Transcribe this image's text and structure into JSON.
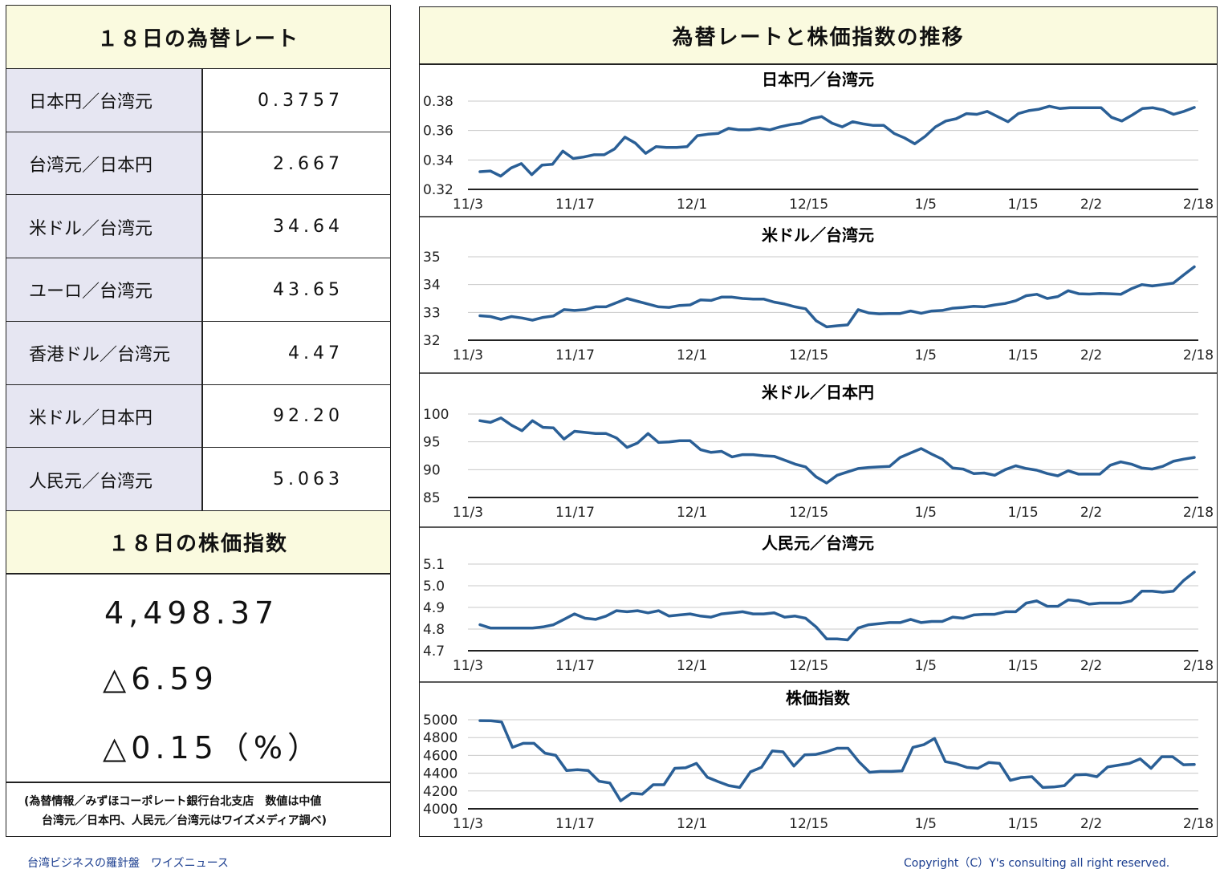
{
  "rates": {
    "title": "１８日の為替レート",
    "rows": [
      {
        "label": "日本円／台湾元",
        "value": "0.3757"
      },
      {
        "label": "台湾元／日本円",
        "value": "2.667"
      },
      {
        "label": "米ドル／台湾元",
        "value": "34.64"
      },
      {
        "label": "ユーロ／台湾元",
        "value": "43.65"
      },
      {
        "label": "香港ドル／台湾元",
        "value": "4.47"
      },
      {
        "label": "米ドル／日本円",
        "value": "92.20"
      },
      {
        "label": "人民元／台湾元",
        "value": "5.063"
      }
    ]
  },
  "stock": {
    "title": "１８日の株価指数",
    "value": "4,498.37",
    "change": "△6.59",
    "change_pct": "△0.15（%）"
  },
  "source_note": {
    "line1": "(為替情報／みずほコーポレート銀行台北支店　数値は中値",
    "line2": "台湾元／日本円、人民元／台湾元はワイズメディア調べ)"
  },
  "charts_header": "為替レートと株価指数の推移",
  "footer": {
    "left": "台湾ビジネスの羅針盤　ワイズニュース",
    "right": "Copyright（C）Y's consulting all right reserved."
  },
  "colors": {
    "line": "#2a5f96",
    "header_bg": "#fafadf",
    "label_bg": "#e6e6f2"
  },
  "chart_data": [
    {
      "type": "line",
      "title": "日本円／台湾元",
      "ylim": [
        0.32,
        0.38
      ],
      "yticks": [
        "0.38",
        "0.36",
        "0.34",
        "0.32"
      ],
      "ytick_values": [
        0.38,
        0.36,
        0.34,
        0.32
      ],
      "xtick_labels": [
        "11/3",
        "11/17",
        "12/1",
        "12/15",
        "1/5",
        "1/15",
        "2/2",
        "2/18"
      ],
      "xtick_index": [
        0,
        11,
        23,
        35,
        47,
        57,
        64,
        75
      ],
      "series": [
        {
          "values": [
            0.332,
            0.3325,
            0.329,
            0.3345,
            0.3375,
            0.33,
            0.3365,
            0.337,
            0.346,
            0.341,
            0.342,
            0.3435,
            0.3435,
            0.3475,
            0.3555,
            0.3515,
            0.3445,
            0.349,
            0.3485,
            0.3485,
            0.349,
            0.3565,
            0.3575,
            0.358,
            0.3615,
            0.3605,
            0.3605,
            0.3615,
            0.3605,
            0.3625,
            0.364,
            0.365,
            0.368,
            0.3695,
            0.365,
            0.3625,
            0.366,
            0.3645,
            0.3635,
            0.3635,
            0.358,
            0.355,
            0.351,
            0.356,
            0.3625,
            0.3665,
            0.368,
            0.3715,
            0.371,
            0.373,
            0.3695,
            0.366,
            0.3715,
            0.3735,
            0.3745,
            0.3765,
            0.375,
            0.3755,
            0.3755,
            0.3755,
            0.3755,
            0.369,
            0.3665,
            0.3705,
            0.375,
            0.3755,
            0.374,
            0.371,
            0.373,
            0.3757
          ]
        }
      ]
    },
    {
      "type": "line",
      "title": "米ドル／台湾元",
      "ylim": [
        32,
        35
      ],
      "yticks": [
        "35",
        "34",
        "33",
        "32"
      ],
      "ytick_values": [
        35,
        34,
        33,
        32
      ],
      "xtick_labels": [
        "11/3",
        "11/17",
        "12/1",
        "12/15",
        "1/5",
        "1/15",
        "2/2",
        "2/18"
      ],
      "xtick_index": [
        0,
        11,
        23,
        35,
        47,
        57,
        64,
        75
      ],
      "series": [
        {
          "values": [
            32.88,
            32.85,
            32.75,
            32.85,
            32.8,
            32.72,
            32.82,
            32.87,
            33.1,
            33.07,
            33.1,
            33.2,
            33.2,
            33.35,
            33.5,
            33.4,
            33.3,
            33.2,
            33.18,
            33.25,
            33.27,
            33.45,
            33.43,
            33.55,
            33.55,
            33.5,
            33.48,
            33.48,
            33.37,
            33.3,
            33.2,
            33.13,
            32.7,
            32.48,
            32.52,
            32.55,
            33.1,
            32.98,
            32.95,
            32.96,
            32.96,
            33.05,
            32.97,
            33.05,
            33.07,
            33.15,
            33.18,
            33.22,
            33.2,
            33.27,
            33.32,
            33.42,
            33.6,
            33.65,
            33.5,
            33.57,
            33.78,
            33.67,
            33.66,
            33.68,
            33.67,
            33.65,
            33.85,
            34.0,
            33.95,
            34.0,
            34.05,
            34.35,
            34.64
          ]
        }
      ]
    },
    {
      "type": "line",
      "title": "米ドル／日本円",
      "ylim": [
        85,
        100
      ],
      "yticks": [
        "100",
        "95",
        "90",
        "85"
      ],
      "ytick_values": [
        100,
        95,
        90,
        85
      ],
      "xtick_labels": [
        "11/3",
        "11/17",
        "12/1",
        "12/15",
        "1/5",
        "1/15",
        "2/2",
        "2/18"
      ],
      "xtick_index": [
        0,
        11,
        23,
        35,
        47,
        57,
        64,
        75
      ],
      "series": [
        {
          "values": [
            98.8,
            98.5,
            99.3,
            98.0,
            97.0,
            98.8,
            97.6,
            97.5,
            95.5,
            96.9,
            96.7,
            96.5,
            96.5,
            95.7,
            94.0,
            94.8,
            96.5,
            94.9,
            95.0,
            95.2,
            95.2,
            93.6,
            93.1,
            93.3,
            92.3,
            92.7,
            92.7,
            92.5,
            92.4,
            91.7,
            91.0,
            90.5,
            88.7,
            87.6,
            89.0,
            89.6,
            90.2,
            90.4,
            90.5,
            90.6,
            92.2,
            93.0,
            93.8,
            92.8,
            91.9,
            90.3,
            90.1,
            89.3,
            89.4,
            89.0,
            90.0,
            90.7,
            90.2,
            89.9,
            89.3,
            88.9,
            89.8,
            89.2,
            89.2,
            89.2,
            90.8,
            91.4,
            91.0,
            90.3,
            90.1,
            90.6,
            91.5,
            91.9,
            92.2
          ]
        }
      ]
    },
    {
      "type": "line",
      "title": "人民元／台湾元",
      "ylim": [
        4.7,
        5.1
      ],
      "yticks": [
        "5.1",
        "5.0",
        "4.9",
        "4.8",
        "4.7"
      ],
      "ytick_values": [
        5.1,
        5.0,
        4.9,
        4.8,
        4.7
      ],
      "xtick_labels": [
        "11/3",
        "11/17",
        "12/1",
        "12/15",
        "1/5",
        "1/15",
        "2/2",
        "2/18"
      ],
      "xtick_index": [
        0,
        11,
        23,
        35,
        47,
        57,
        64,
        75
      ],
      "series": [
        {
          "values": [
            4.82,
            4.805,
            4.805,
            4.805,
            4.805,
            4.805,
            4.81,
            4.82,
            4.845,
            4.87,
            4.85,
            4.845,
            4.86,
            4.885,
            4.88,
            4.885,
            4.875,
            4.885,
            4.86,
            4.865,
            4.87,
            4.86,
            4.855,
            4.87,
            4.875,
            4.88,
            4.87,
            4.87,
            4.875,
            4.855,
            4.86,
            4.85,
            4.81,
            4.755,
            4.755,
            4.75,
            4.805,
            4.82,
            4.825,
            4.83,
            4.83,
            4.845,
            4.83,
            4.835,
            4.835,
            4.855,
            4.85,
            4.865,
            4.868,
            4.868,
            4.88,
            4.88,
            4.92,
            4.93,
            4.905,
            4.905,
            4.935,
            4.93,
            4.915,
            4.92,
            4.92,
            4.92,
            4.93,
            4.975,
            4.975,
            4.97,
            4.975,
            5.025,
            5.063
          ]
        }
      ]
    },
    {
      "type": "line",
      "title": "株価指数",
      "ylim": [
        4000,
        5000
      ],
      "yticks": [
        "5000",
        "4800",
        "4600",
        "4400",
        "4200",
        "4000"
      ],
      "ytick_values": [
        5000,
        4800,
        4600,
        4400,
        4200,
        4000
      ],
      "xtick_labels": [
        "11/3",
        "11/17",
        "12/1",
        "12/15",
        "1/5",
        "1/15",
        "2/2",
        "2/18"
      ],
      "xtick_index": [
        0,
        11,
        23,
        35,
        47,
        57,
        64,
        75
      ],
      "series": [
        {
          "values": [
            4990,
            4988,
            4975,
            4690,
            4735,
            4735,
            4625,
            4600,
            4430,
            4440,
            4430,
            4310,
            4290,
            4090,
            4175,
            4165,
            4270,
            4270,
            4455,
            4460,
            4510,
            4355,
            4305,
            4260,
            4240,
            4415,
            4465,
            4650,
            4640,
            4480,
            4605,
            4610,
            4640,
            4680,
            4680,
            4530,
            4410,
            4420,
            4420,
            4425,
            4690,
            4720,
            4790,
            4530,
            4505,
            4465,
            4455,
            4520,
            4510,
            4320,
            4350,
            4360,
            4240,
            4245,
            4260,
            4380,
            4385,
            4360,
            4470,
            4490,
            4510,
            4560,
            4455,
            4585,
            4585,
            4495,
            4498.37
          ]
        }
      ]
    }
  ]
}
